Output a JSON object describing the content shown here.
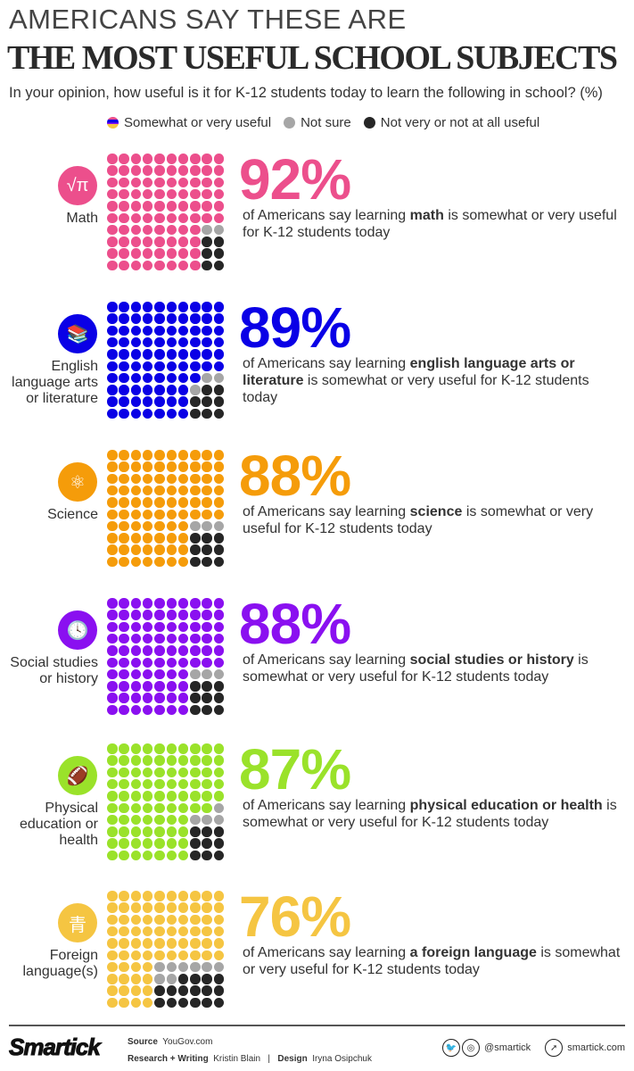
{
  "header": {
    "kicker": "AMERICANS SAY THESE ARE",
    "title": "THE MOST USEFUL SCHOOL SUBJECTS",
    "question": "In your opinion, how useful is it for K-12 students today to learn the following in school? (%)"
  },
  "legend": {
    "useful": "Somewhat or very useful",
    "not_sure": "Not sure",
    "not_useful": "Not very or not at all useful",
    "not_sure_color": "#a6a6a6",
    "not_useful_color": "#262626"
  },
  "chart_data": {
    "type": "waffle",
    "grid": "10x10",
    "categories": [
      "Math",
      "English language arts or literature",
      "Science",
      "Social studies or history",
      "Physical education or health",
      "Foreign language(s)"
    ],
    "series": [
      {
        "name": "Somewhat or very useful",
        "values": [
          92,
          89,
          88,
          88,
          87,
          76
        ]
      },
      {
        "name": "Not sure",
        "values": [
          2,
          3,
          3,
          3,
          4,
          8
        ]
      },
      {
        "name": "Not very or not at all useful",
        "values": [
          6,
          8,
          9,
          9,
          9,
          16
        ]
      }
    ]
  },
  "subjects": [
    {
      "label": "Math",
      "icon": "math-icon",
      "glyph": "√π",
      "color": "#ec4f8c",
      "pct": "92%",
      "pre": "of Americans say learning ",
      "bold": "math",
      "post": " is somewhat or very useful for K-12 students today",
      "sure": 92,
      "ns": 2,
      "no": 6
    },
    {
      "label": "English language arts or literature",
      "icon": "books-icon",
      "glyph": "📚",
      "color": "#0a00e6",
      "pct": "89%",
      "pre": "of Americans say learning ",
      "bold": "english language arts or literature",
      "post": " is somewhat or very useful for K-12 students today",
      "sure": 89,
      "ns": 3,
      "no": 8
    },
    {
      "label": "Science",
      "icon": "atom-icon",
      "glyph": "⚛",
      "color": "#f59c0a",
      "pct": "88%",
      "pre": "of Americans say learning ",
      "bold": "science",
      "post": " is somewhat or very useful for K-12 students today",
      "sure": 88,
      "ns": 3,
      "no": 9
    },
    {
      "label": "Social studies or history",
      "icon": "history-scroll-icon",
      "glyph": "🕓",
      "color": "#8a10f0",
      "pct": "88%",
      "pre": "of Americans say learning ",
      "bold": "social studies or history",
      "post": " is somewhat or very useful for K-12 students today",
      "sure": 88,
      "ns": 3,
      "no": 9
    },
    {
      "label": "Physical education or health",
      "icon": "football-icon",
      "glyph": "🏈",
      "color": "#9ae22a",
      "pct": "87%",
      "pre": "of Americans say learning ",
      "bold": "physical education or health",
      "post": " is somewhat or very useful for K-12 students today",
      "sure": 87,
      "ns": 4,
      "no": 9
    },
    {
      "label": "Foreign language(s)",
      "icon": "language-books-icon",
      "glyph": "青",
      "color": "#f5c542",
      "pct": "76%",
      "pre": "of Americans say learning ",
      "bold": "a foreign language",
      "post": " is somewhat or very useful for K-12 students today",
      "sure": 76,
      "ns": 8,
      "no": 16
    }
  ],
  "footer": {
    "logo": "Smartick",
    "source_label": "Source",
    "source": "YouGov.com",
    "research_label": "Research + Writing",
    "research": "Kristin Blain",
    "design_label": "Design",
    "design": "Iryna Osipchuk",
    "handle": "@smartick",
    "site": "smartick.com"
  }
}
